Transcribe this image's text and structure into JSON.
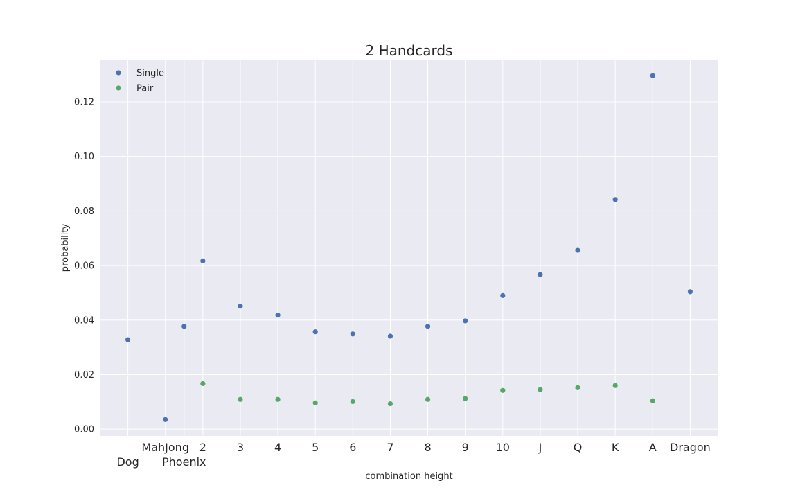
{
  "chart_data": {
    "type": "scatter",
    "title": "2 Handcards",
    "xlabel": "combination height",
    "ylabel": "probability",
    "ylim": [
      -0.0025,
      0.1355
    ],
    "yticks": [
      "0.00",
      "0.02",
      "0.04",
      "0.06",
      "0.08",
      "0.10",
      "0.12"
    ],
    "ytick_values": [
      0.0,
      0.02,
      0.04,
      0.06,
      0.08,
      0.1,
      0.12
    ],
    "grid": true,
    "legend_position": "top-left",
    "colors": {
      "Single": "#4c72b0",
      "Pair": "#55a868",
      "background": "#eaeaf2",
      "grid": "#ffffff"
    },
    "x_ticks": [
      {
        "label": "Dog",
        "x": 0,
        "row": 2
      },
      {
        "label": "MahJong",
        "x": 1,
        "row": 1
      },
      {
        "label": "Phoenix",
        "x": 1.5,
        "row": 2
      },
      {
        "label": "2",
        "x": 2,
        "row": 1
      },
      {
        "label": "3",
        "x": 3,
        "row": 1
      },
      {
        "label": "4",
        "x": 4,
        "row": 1
      },
      {
        "label": "5",
        "x": 5,
        "row": 1
      },
      {
        "label": "6",
        "x": 6,
        "row": 1
      },
      {
        "label": "7",
        "x": 7,
        "row": 1
      },
      {
        "label": "8",
        "x": 8,
        "row": 1
      },
      {
        "label": "9",
        "x": 9,
        "row": 1
      },
      {
        "label": "10",
        "x": 10,
        "row": 1
      },
      {
        "label": "J",
        "x": 11,
        "row": 1
      },
      {
        "label": "Q",
        "x": 12,
        "row": 1
      },
      {
        "label": "K",
        "x": 13,
        "row": 1
      },
      {
        "label": "A",
        "x": 14,
        "row": 1
      },
      {
        "label": "Dragon",
        "x": 15,
        "row": 1
      }
    ],
    "xlim": [
      -0.75,
      15.75
    ],
    "series": [
      {
        "name": "Single",
        "points": [
          {
            "x": 0,
            "y": 0.0328
          },
          {
            "x": 1,
            "y": 0.0035
          },
          {
            "x": 1.5,
            "y": 0.0377
          },
          {
            "x": 2,
            "y": 0.0617
          },
          {
            "x": 3,
            "y": 0.0451
          },
          {
            "x": 4,
            "y": 0.0418
          },
          {
            "x": 5,
            "y": 0.0357
          },
          {
            "x": 6,
            "y": 0.0349
          },
          {
            "x": 7,
            "y": 0.0341
          },
          {
            "x": 8,
            "y": 0.0377
          },
          {
            "x": 9,
            "y": 0.0397
          },
          {
            "x": 10,
            "y": 0.049
          },
          {
            "x": 11,
            "y": 0.0567
          },
          {
            "x": 12,
            "y": 0.0656
          },
          {
            "x": 13,
            "y": 0.0842
          },
          {
            "x": 14,
            "y": 0.1296
          },
          {
            "x": 15,
            "y": 0.0504
          }
        ]
      },
      {
        "name": "Pair",
        "points": [
          {
            "x": 2,
            "y": 0.0167
          },
          {
            "x": 3,
            "y": 0.0109
          },
          {
            "x": 4,
            "y": 0.0109
          },
          {
            "x": 5,
            "y": 0.0096
          },
          {
            "x": 6,
            "y": 0.0101
          },
          {
            "x": 7,
            "y": 0.0093
          },
          {
            "x": 8,
            "y": 0.0109
          },
          {
            "x": 9,
            "y": 0.0112
          },
          {
            "x": 10,
            "y": 0.0142
          },
          {
            "x": 11,
            "y": 0.0145
          },
          {
            "x": 12,
            "y": 0.0152
          },
          {
            "x": 13,
            "y": 0.016
          },
          {
            "x": 14,
            "y": 0.0104
          }
        ]
      }
    ]
  }
}
